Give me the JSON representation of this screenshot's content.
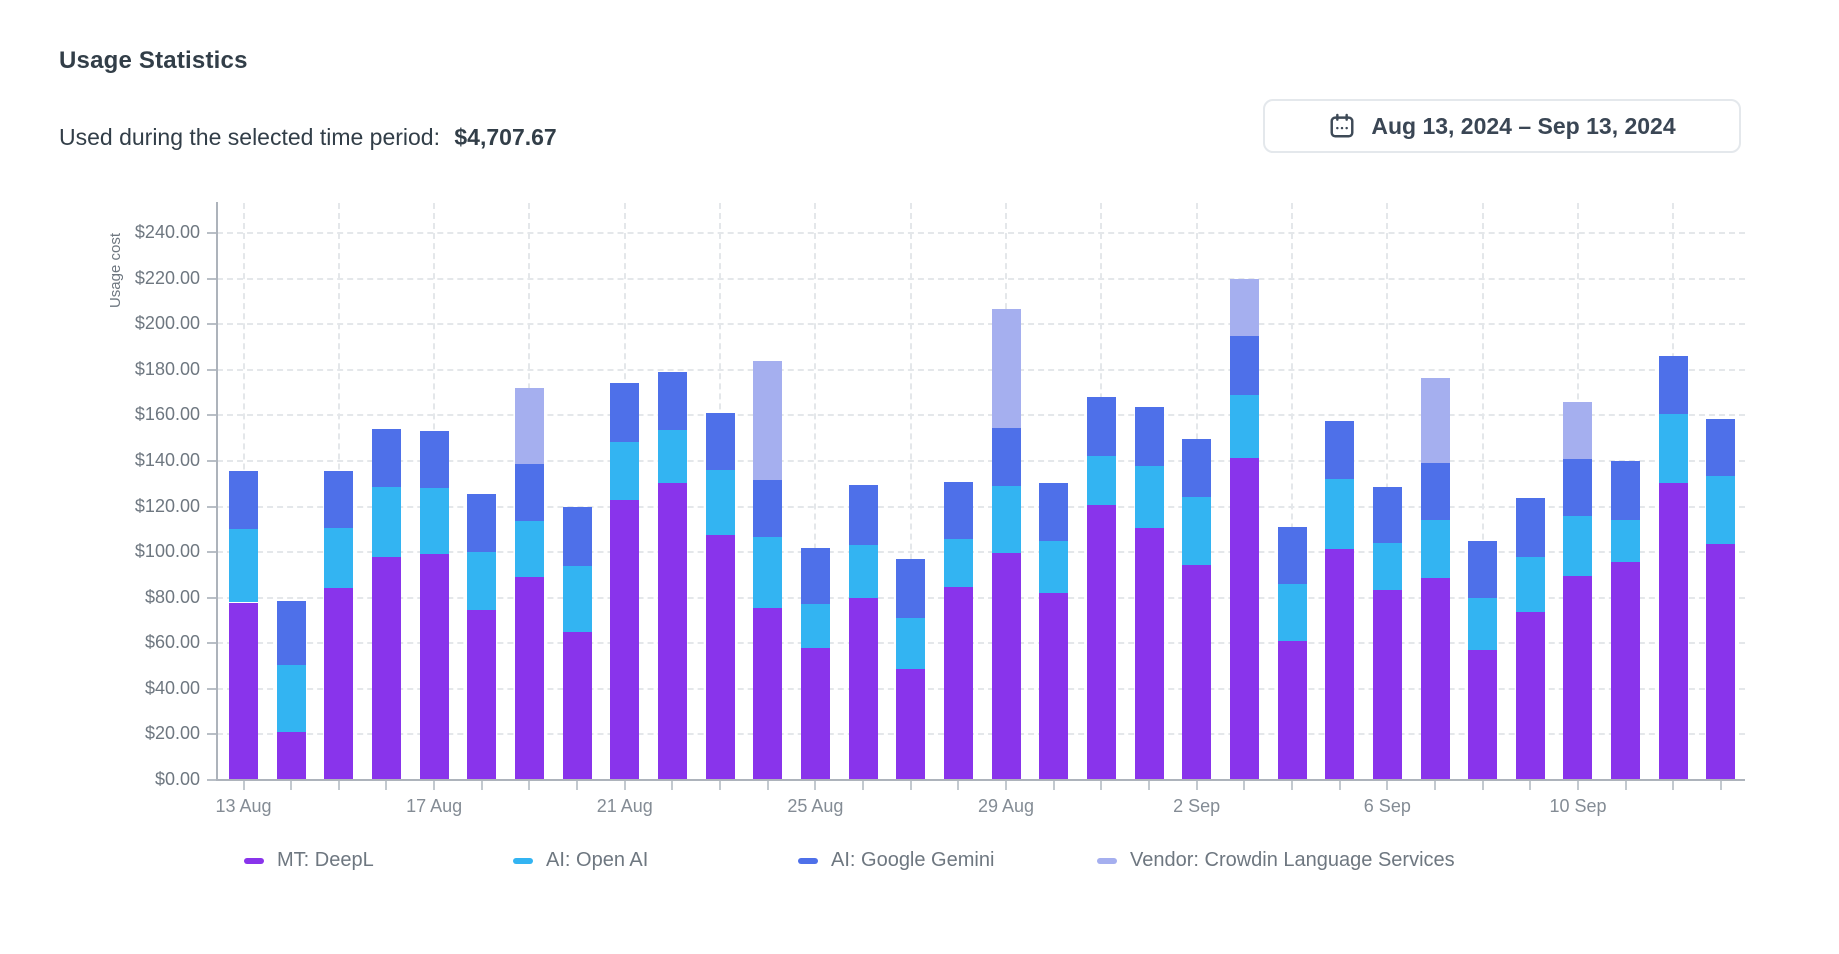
{
  "header": {
    "title": "Usage Statistics",
    "period_label": "Used during the selected time period:",
    "period_total": "$4,707.67"
  },
  "date_picker": {
    "range": "Aug 13, 2024 – Sep 13, 2024",
    "icon": "calendar-icon"
  },
  "chart_data": {
    "type": "bar",
    "stacked": true,
    "ylabel": "Usage cost",
    "ylim": [
      0,
      240
    ],
    "ytick_step": 20,
    "ytick_labels": [
      "$0.00",
      "$20.00",
      "$40.00",
      "$60.00",
      "$80.00",
      "$100.00",
      "$120.00",
      "$140.00",
      "$160.00",
      "$180.00",
      "$200.00",
      "$220.00",
      "$240.00"
    ],
    "xtick_labels": [
      "13 Aug",
      "17 Aug",
      "21 Aug",
      "25 Aug",
      "29 Aug",
      "2 Sep",
      "6 Sep",
      "10 Sep"
    ],
    "grid": "dashed",
    "legend_position": "bottom",
    "categories": [
      "13 Aug",
      "14 Aug",
      "15 Aug",
      "16 Aug",
      "17 Aug",
      "18 Aug",
      "19 Aug",
      "20 Aug",
      "21 Aug",
      "22 Aug",
      "23 Aug",
      "24 Aug",
      "25 Aug",
      "26 Aug",
      "27 Aug",
      "28 Aug",
      "29 Aug",
      "30 Aug",
      "31 Aug",
      "1 Sep",
      "2 Sep",
      "3 Sep",
      "4 Sep",
      "5 Sep",
      "6 Sep",
      "7 Sep",
      "8 Sep",
      "9 Sep",
      "10 Sep",
      "11 Sep",
      "12 Sep",
      "13 Sep"
    ],
    "series": [
      {
        "name": "MT: DeepL",
        "color": "#8934EB",
        "values": [
          77.44,
          20.68,
          83.69,
          97.45,
          98.89,
          74.27,
          88.41,
          64.45,
          122.37,
          130.06,
          106.97,
          74.94,
          57.34,
          79.56,
          48.1,
          84.08,
          99.09,
          81.77,
          120.15,
          110.25,
          93.99,
          141.03,
          60.51,
          101.01,
          82.92,
          88.31,
          56.57,
          73.3,
          89.27,
          95.33,
          130.06,
          103.13
        ]
      },
      {
        "name": "AI: Open AI",
        "color": "#33B4F2",
        "values": [
          32.23,
          29.34,
          26.26,
          30.5,
          28.67,
          25.4,
          24.72,
          28.96,
          25.49,
          22.9,
          28.67,
          31.07,
          19.53,
          22.9,
          22.61,
          21.16,
          29.53,
          22.51,
          21.74,
          27.13,
          29.63,
          27.32,
          24.92,
          30.69,
          20.68,
          25.4,
          22.99,
          24.15,
          26.17,
          18.09,
          30.21,
          29.73
        ]
      },
      {
        "name": "AI: Google Gemini",
        "color": "#4E70E9",
        "values": [
          25.68,
          27.9,
          25.2,
          25.49,
          25.01,
          25.59,
          25.01,
          25.78,
          25.69,
          25.4,
          24.92,
          25.11,
          24.53,
          26.55,
          25.78,
          25.2,
          25.59,
          25.78,
          25.78,
          25.78,
          25.69,
          26.17,
          25.11,
          25.49,
          24.43,
          24.92,
          25.01,
          25.97,
          25.11,
          26.07,
          25.2,
          25.01
        ]
      },
      {
        "name": "Vendor: Crowdin Language Services",
        "color": "#A5AFEF",
        "values": [
          0,
          0,
          0,
          0,
          0,
          0,
          33.57,
          0,
          0,
          0,
          0,
          52.24,
          0,
          0,
          0,
          0,
          51.95,
          0,
          0,
          0,
          0,
          24.72,
          0,
          0,
          0,
          37.33,
          0,
          0,
          25.01,
          0,
          0,
          0
        ]
      }
    ]
  }
}
